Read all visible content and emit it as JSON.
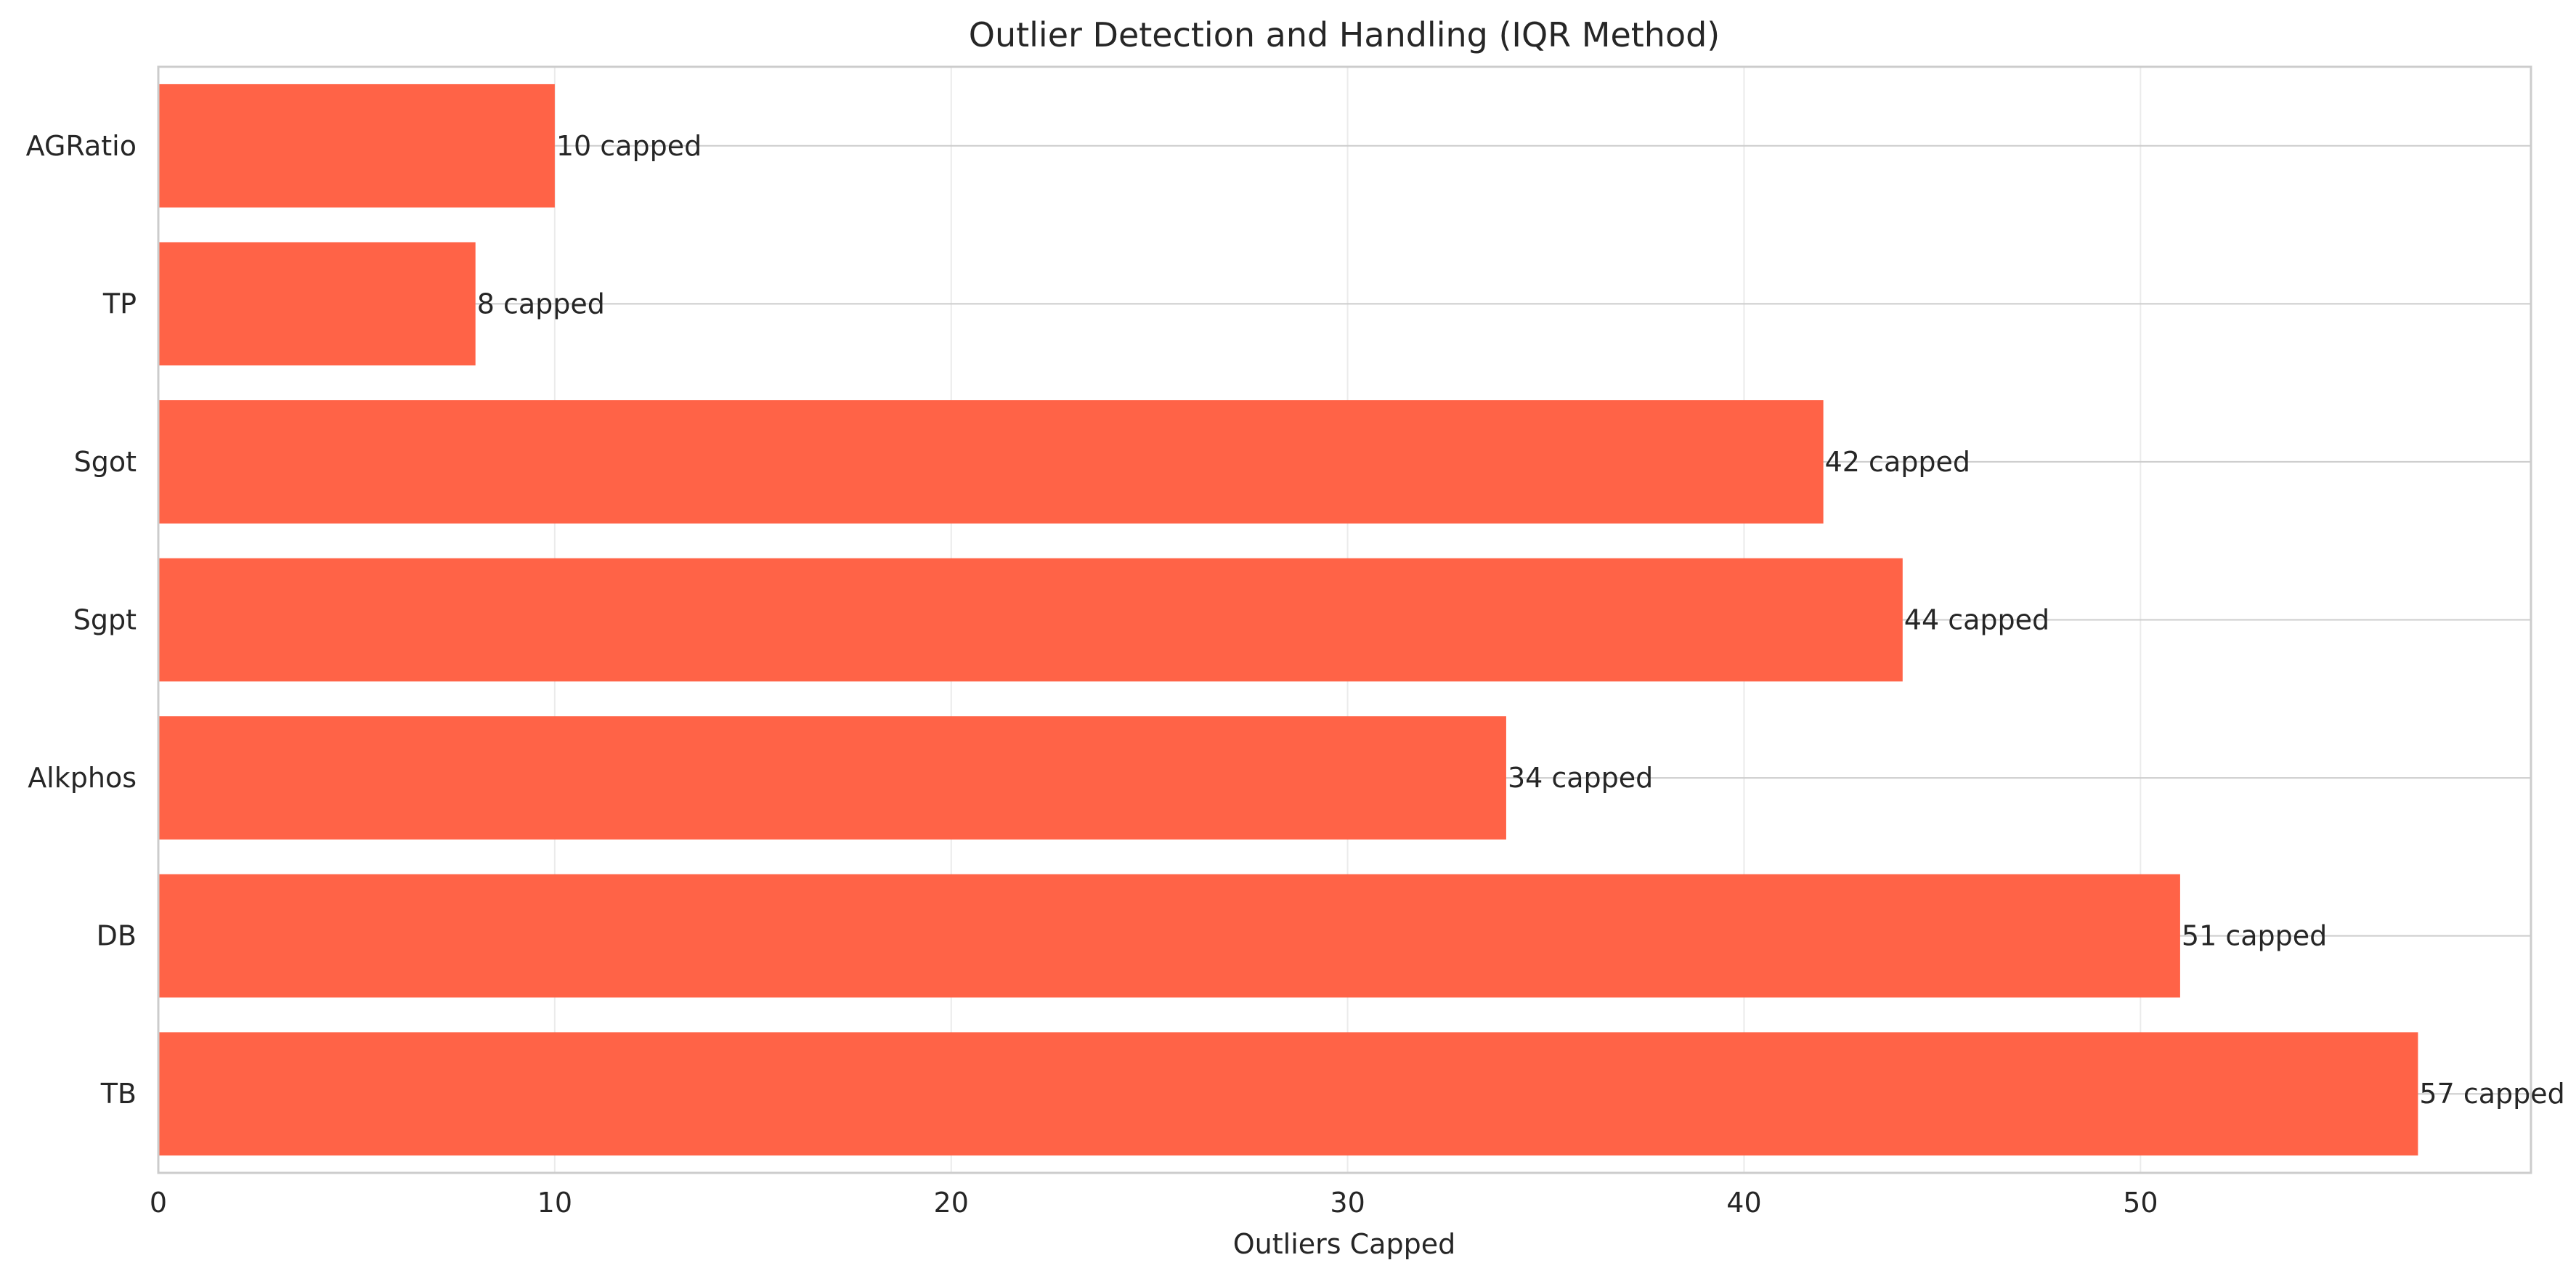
{
  "chart_data": {
    "type": "bar",
    "orientation": "horizontal",
    "title": "Outlier Detection and Handling (IQR Method)",
    "xlabel": "Outliers Capped",
    "ylabel": "",
    "categories": [
      "AGRatio",
      "TP",
      "Sgot",
      "Sgpt",
      "Alkphos",
      "DB",
      "TB"
    ],
    "values": [
      10,
      8,
      42,
      44,
      34,
      51,
      57
    ],
    "data_labels": [
      "10 capped",
      "8 capped",
      "42 capped",
      "44 capped",
      "34 capped",
      "51 capped",
      "57 capped"
    ],
    "xlim": [
      0,
      59.85
    ],
    "xticks": [
      0,
      10,
      20,
      30,
      40,
      50
    ],
    "xtick_labels": [
      "0",
      "10",
      "20",
      "30",
      "40",
      "50"
    ],
    "grid": true,
    "bar_color": "#FF6347",
    "grid_color": "#EBEBEB",
    "spine_color": "#CCCCCC",
    "text_color": "#262626"
  }
}
